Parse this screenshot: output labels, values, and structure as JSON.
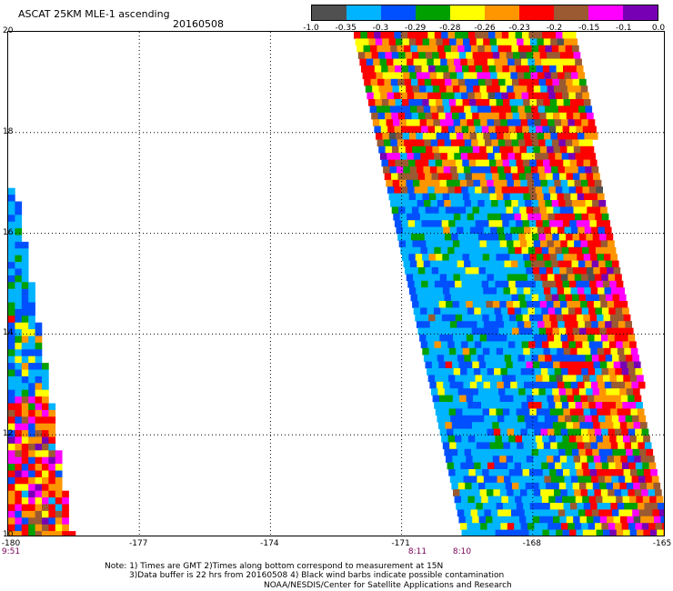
{
  "header": {
    "title": "ASCAT 25KM MLE-1 ascending",
    "date": "20160508"
  },
  "colorbar": {
    "colors": [
      "#505050",
      "#00b4ff",
      "#0050ff",
      "#00a000",
      "#ffff00",
      "#ff9600",
      "#ff0000",
      "#9b5a32",
      "#ff00ff",
      "#7800b4"
    ],
    "labels": [
      "-1.0",
      "-0.35",
      "-0.3",
      "-0.29",
      "-0.28",
      "-0.26",
      "-0.23",
      "-0.2",
      "-0.15",
      "-0.1",
      "0.0"
    ]
  },
  "axes": {
    "y_labels": [
      "20",
      "18",
      "16",
      "14",
      "12",
      "10"
    ],
    "x_labels": [
      "-180",
      "-177",
      "-174",
      "-171",
      "-168",
      "-165"
    ],
    "time_labels": [
      "9:51",
      "8:11",
      "8:10"
    ]
  },
  "notes": {
    "line1": "Note: 1) Times are GMT 2)Times along bottom correspond to measurement at 15N",
    "line2": "3)Data buffer is 22 hrs from 20160508 4) Black wind barbs indicate possible contamination",
    "line3": "NOAA/NESDIS/Center for Satellite Applications and Research"
  },
  "chart_data": {
    "type": "heatmap",
    "x_range": [
      -180,
      -165
    ],
    "y_range": [
      10,
      20
    ],
    "swaths": [
      {
        "region": "west",
        "lon_range": [
          -180,
          -178.6
        ],
        "lat_range": [
          10,
          16.9
        ]
      },
      {
        "region": "east",
        "lon_range": [
          -172.5,
          -165.1
        ],
        "lat_range": [
          10,
          20
        ]
      }
    ]
  }
}
